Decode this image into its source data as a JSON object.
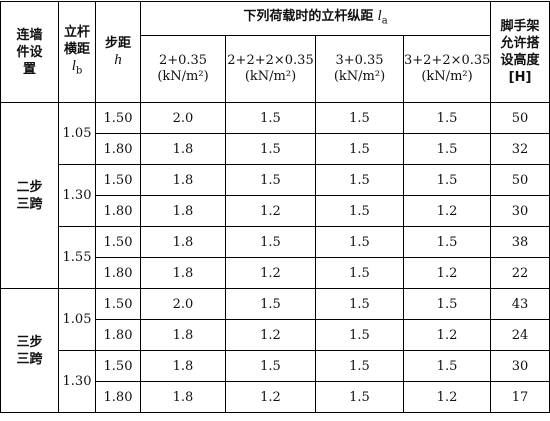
{
  "table": {
    "header": {
      "wall_tie": "连墙件设置",
      "transverse": {
        "text": "立杆横距",
        "symbol": "l",
        "subscript": "b"
      },
      "step": {
        "text": "步距",
        "symbol": "h"
      },
      "load_group": {
        "text": "下列荷载时的立杆纵距",
        "symbol": "l",
        "subscript": "a"
      },
      "loads": [
        {
          "load": "2+0.35",
          "unit": "(kN/m²)"
        },
        {
          "load": "2+2+2×0.35",
          "unit": "(kN/m²)"
        },
        {
          "load": "3+0.35",
          "unit": "(kN/m²)"
        },
        {
          "load": "3+2+2×0.35",
          "unit": "(kN/m²)"
        }
      ],
      "height": "脚手架允许搭设高度[H]"
    },
    "groups": [
      {
        "wall_tie": "二步三跨",
        "spans": [
          {
            "transverse": "1.05",
            "rows": [
              {
                "step": "1.50",
                "spacings": [
                  "2.0",
                  "1.5",
                  "1.5",
                  "1.5"
                ],
                "height": "50"
              },
              {
                "step": "1.80",
                "spacings": [
                  "1.8",
                  "1.5",
                  "1.5",
                  "1.5"
                ],
                "height": "32"
              }
            ]
          },
          {
            "transverse": "1.30",
            "rows": [
              {
                "step": "1.50",
                "spacings": [
                  "1.8",
                  "1.5",
                  "1.5",
                  "1.5"
                ],
                "height": "50"
              },
              {
                "step": "1.80",
                "spacings": [
                  "1.8",
                  "1.2",
                  "1.5",
                  "1.2"
                ],
                "height": "30"
              }
            ]
          },
          {
            "transverse": "1.55",
            "rows": [
              {
                "step": "1.50",
                "spacings": [
                  "1.8",
                  "1.5",
                  "1.5",
                  "1.5"
                ],
                "height": "38"
              },
              {
                "step": "1.80",
                "spacings": [
                  "1.8",
                  "1.2",
                  "1.5",
                  "1.2"
                ],
                "height": "22"
              }
            ]
          }
        ]
      },
      {
        "wall_tie": "三步三跨",
        "spans": [
          {
            "transverse": "1.05",
            "rows": [
              {
                "step": "1.50",
                "spacings": [
                  "2.0",
                  "1.5",
                  "1.5",
                  "1.5"
                ],
                "height": "43"
              },
              {
                "step": "1.80",
                "spacings": [
                  "1.8",
                  "1.2",
                  "1.5",
                  "1.2"
                ],
                "height": "24"
              }
            ]
          },
          {
            "transverse": "1.30",
            "rows": [
              {
                "step": "1.50",
                "spacings": [
                  "1.8",
                  "1.5",
                  "1.5",
                  "1.5"
                ],
                "height": "30"
              },
              {
                "step": "1.80",
                "spacings": [
                  "1.8",
                  "1.2",
                  "1.5",
                  "1.2"
                ],
                "height": "17"
              }
            ]
          }
        ]
      }
    ]
  }
}
